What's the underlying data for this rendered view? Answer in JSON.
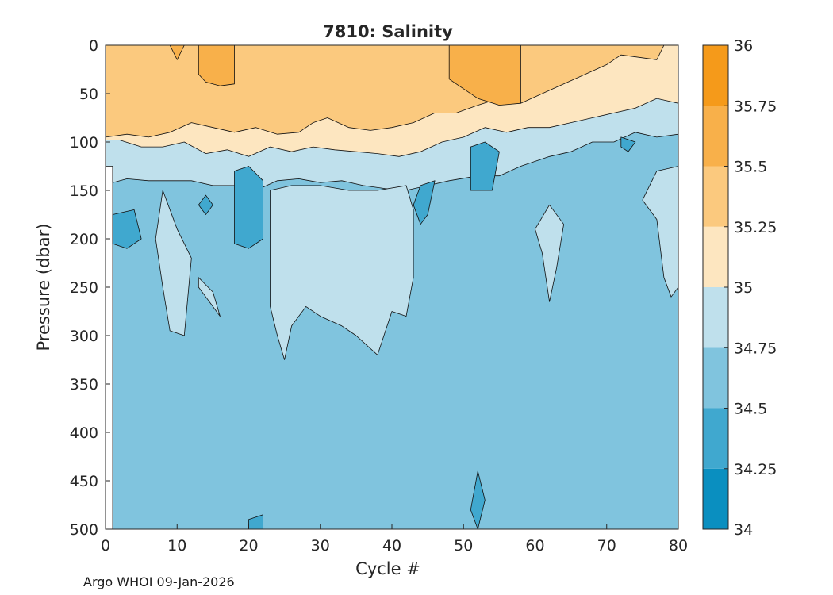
{
  "chart_data": {
    "type": "heatmap",
    "subtype": "filled-contour",
    "title": "7810:  Salinity",
    "xlabel": "Cycle #",
    "ylabel": "Pressure (dbar)",
    "xlim": [
      0,
      80
    ],
    "ylim": [
      0,
      500
    ],
    "y_reversed": true,
    "xticks": [
      0,
      10,
      20,
      30,
      40,
      50,
      60,
      70,
      80
    ],
    "yticks": [
      0,
      50,
      100,
      150,
      200,
      250,
      300,
      350,
      400,
      450,
      500
    ],
    "colorbar": {
      "levels": [
        34,
        34.25,
        34.5,
        34.75,
        35,
        35.25,
        35.5,
        35.75,
        36
      ],
      "tick_labels": [
        "34",
        "34.25",
        "34.5",
        "34.75",
        "35",
        "35.25",
        "35.5",
        "35.75",
        "36"
      ],
      "colors": [
        "#0a8fc0",
        "#40a8cf",
        "#80c4de",
        "#bfe0ec",
        "#fde6c0",
        "#fbc97e",
        "#f8b04a",
        "#f59a1a"
      ]
    },
    "background_band": {
      "range": [
        34.5,
        34.75
      ],
      "description": "dominant salinity below ~130 dbar"
    },
    "approx_contours": {
      "upper_35_isohaline_dbar_by_cycle": [
        [
          1,
          95
        ],
        [
          10,
          100
        ],
        [
          20,
          115
        ],
        [
          30,
          110
        ],
        [
          40,
          115
        ],
        [
          50,
          95
        ],
        [
          60,
          90
        ],
        [
          70,
          75
        ],
        [
          80,
          60
        ]
      ],
      "lower_34_75_isohaline_dbar_by_cycle": [
        [
          1,
          125
        ],
        [
          10,
          140
        ],
        [
          20,
          150
        ],
        [
          30,
          140
        ],
        [
          40,
          150
        ],
        [
          50,
          135
        ],
        [
          60,
          120
        ],
        [
          70,
          100
        ],
        [
          80,
          95
        ]
      ]
    },
    "notable_features": [
      {
        "cycles": [
          23,
          43
        ],
        "pressure_dbar": [
          150,
          320
        ],
        "salinity_band": "34.75-35"
      },
      {
        "cycles": [
          18,
          22
        ],
        "pressure_dbar": [
          130,
          210
        ],
        "salinity_band": "34.25-34.5"
      },
      {
        "cycles": [
          51,
          55
        ],
        "pressure_dbar": [
          100,
          150
        ],
        "salinity_band": "34.25-34.5"
      },
      {
        "cycles": [
          0,
          5
        ],
        "pressure_dbar": [
          170,
          210
        ],
        "salinity_band": "34.25-34.5"
      }
    ]
  },
  "footer": {
    "text": "Argo WHOI 09-Jan-2026"
  }
}
